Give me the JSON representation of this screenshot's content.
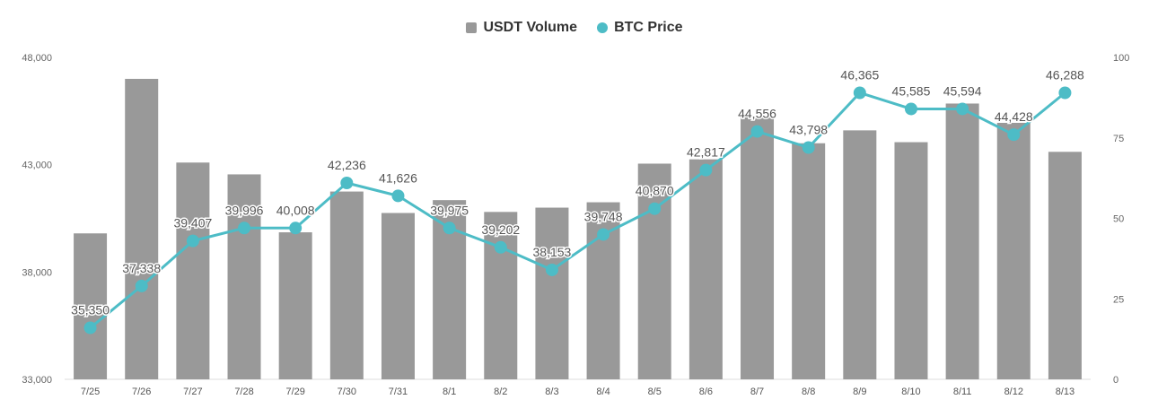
{
  "chart_data": {
    "type": "bar+line",
    "categories": [
      "7/25",
      "7/26",
      "7/27",
      "7/28",
      "7/29",
      "7/30",
      "7/31",
      "8/1",
      "8/2",
      "8/3",
      "8/4",
      "8/5",
      "8/6",
      "8/7",
      "8/8",
      "8/9",
      "8/10",
      "8/11",
      "8/12",
      "8/13"
    ],
    "series": [
      {
        "name": "USDT Volume",
        "type": "bar",
        "axis": "left",
        "color": "#999999",
        "values": [
          39800,
          47000,
          43100,
          42550,
          39850,
          41750,
          40750,
          41350,
          40800,
          41000,
          41250,
          43050,
          43250,
          45250,
          44000,
          44600,
          44050,
          45850,
          44950,
          43600
        ]
      },
      {
        "name": "BTC Price",
        "type": "line",
        "axis": "right",
        "color": "#4dbcc6",
        "values": [
          16,
          29,
          43,
          47,
          47,
          61,
          57,
          47,
          41,
          34,
          45,
          53,
          65,
          77,
          72,
          89,
          84,
          84,
          76,
          89
        ],
        "labels": [
          "35,350",
          "37,338",
          "39,407",
          "39,996",
          "40,008",
          "42,236",
          "41,626",
          "39,975",
          "39,202",
          "38,153",
          "39,748",
          "40,870",
          "42,817",
          "44,556",
          "43,798",
          "46,365",
          "45,585",
          "45,594",
          "44,428",
          "46,288"
        ]
      }
    ],
    "left_axis": {
      "ticks": [
        "48,000",
        "43,000",
        "38,000",
        "33,000"
      ],
      "range": [
        33000,
        48000
      ]
    },
    "right_axis": {
      "ticks": [
        "100",
        "75",
        "50",
        "25",
        "0"
      ],
      "range": [
        0,
        100
      ]
    },
    "legend_position": "top-center"
  }
}
